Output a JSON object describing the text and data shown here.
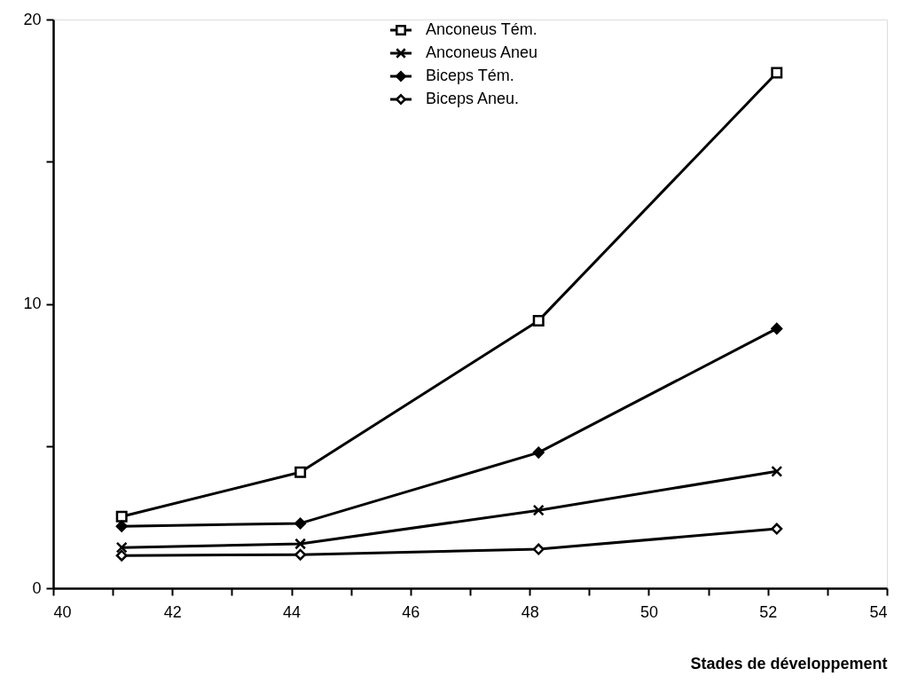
{
  "chart_data": {
    "type": "line",
    "xlabel": "Stades de développement",
    "x": [
      41.15,
      44.15,
      48.15,
      52.15
    ],
    "series": [
      {
        "name": "Anconeus Tém.",
        "color": "#000000",
        "marker": "square",
        "values": [
          2.52,
          4.08,
          9.41,
          18.13
        ]
      },
      {
        "name": "Anconeus Aneu",
        "color": "#000000",
        "marker": "cross",
        "values": [
          1.43,
          1.56,
          2.74,
          4.11
        ]
      },
      {
        "name": "Biceps Tém.",
        "color": "#000000",
        "marker": "diamond",
        "values": [
          2.18,
          2.28,
          4.77,
          9.13
        ]
      },
      {
        "name": "Biceps Aneu.",
        "color": "#000000",
        "marker": "diamond-open",
        "values": [
          1.15,
          1.18,
          1.37,
          2.09
        ]
      }
    ],
    "xlim": [
      40,
      54
    ],
    "xticks": [
      40,
      {
        "value": 41,
        "label": null
      },
      42,
      {
        "value": 43,
        "label": null
      },
      44,
      {
        "value": 45,
        "label": null
      },
      46,
      {
        "value": 47,
        "label": null
      },
      48,
      {
        "value": 49,
        "label": null
      },
      50,
      {
        "value": 51,
        "label": null
      },
      52,
      {
        "value": 53,
        "label": null
      },
      54
    ],
    "ylim": [
      0,
      20
    ],
    "yticks": [
      0,
      {
        "value": 5,
        "label": null
      },
      10,
      {
        "value": 15,
        "label": null
      },
      20
    ],
    "grid": false,
    "legend": "top",
    "line_style": "solid"
  }
}
